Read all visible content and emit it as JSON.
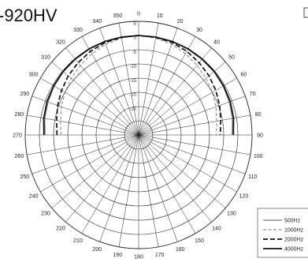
{
  "chart_data": {
    "type": "polar",
    "title": "-920HV",
    "angle_labels": [
      "0",
      "10",
      "20",
      "30",
      "40",
      "50",
      "60",
      "70",
      "80",
      "90",
      "100",
      "110",
      "120",
      "130",
      "140",
      "150",
      "160",
      "170",
      "180",
      "190",
      "200",
      "210",
      "220",
      "230",
      "240",
      "250",
      "260",
      "270",
      "280",
      "290",
      "300",
      "310",
      "320",
      "330",
      "340",
      "350"
    ],
    "radial_labels": [
      "5",
      "0",
      "-5",
      "-10",
      "-15",
      "-20",
      "-25"
    ],
    "r_range_db": [
      -35,
      5
    ],
    "grid": true,
    "legend_position": "bottom-right",
    "series": [
      {
        "name": "500Hz",
        "style": "solid-thin",
        "color": "#555555",
        "angles": [
          270,
          280,
          290,
          300,
          310,
          320,
          330,
          340,
          350,
          0,
          10,
          20,
          30,
          40,
          50,
          60,
          70,
          80,
          90
        ],
        "values": [
          -2.0,
          -1.4,
          -1.0,
          -0.6,
          -0.4,
          -0.3,
          -0.2,
          -0.1,
          0,
          0,
          0,
          -0.1,
          -0.2,
          -0.3,
          -0.4,
          -0.6,
          -1.0,
          -1.4,
          -2.0
        ]
      },
      {
        "name": "1000Hz",
        "style": "dashed-thin",
        "color": "#777777",
        "angles": [
          270,
          280,
          290,
          300,
          310,
          320,
          330,
          340,
          350,
          0,
          10,
          20,
          30,
          40,
          50,
          60,
          70,
          80,
          90
        ],
        "values": [
          -7.6,
          -7.0,
          -6.0,
          -5.0,
          -4.0,
          -3.0,
          -2.0,
          -1.0,
          -0.4,
          0,
          -0.4,
          -1.0,
          -2.0,
          -3.0,
          -4.0,
          -5.0,
          -6.0,
          -7.0,
          -7.6
        ]
      },
      {
        "name": "2000Hz",
        "style": "dashed-thick",
        "color": "#111111",
        "angles": [
          270,
          280,
          290,
          300,
          310,
          320,
          330,
          340,
          350,
          0,
          10,
          20,
          30,
          40,
          50,
          60,
          70,
          80,
          90
        ],
        "values": [
          -6.2,
          -5.6,
          -4.6,
          -3.6,
          -2.6,
          -1.8,
          -1.0,
          -0.4,
          -0.1,
          0,
          -0.1,
          -0.4,
          -1.0,
          -1.8,
          -2.6,
          -3.6,
          -4.6,
          -5.6,
          -6.2
        ]
      },
      {
        "name": "4000Hz",
        "style": "solid-thick",
        "color": "#111111",
        "angles": [
          270,
          280,
          290,
          300,
          310,
          320,
          330,
          340,
          350,
          0,
          10,
          20,
          30,
          40,
          50,
          60,
          70,
          80,
          90
        ],
        "values": [
          -1.6,
          -1.0,
          -0.6,
          -0.4,
          -0.2,
          -0.1,
          0,
          0,
          0,
          0,
          0,
          0,
          0,
          -0.1,
          -0.2,
          -0.4,
          -0.6,
          -1.0,
          -1.6
        ]
      }
    ]
  }
}
